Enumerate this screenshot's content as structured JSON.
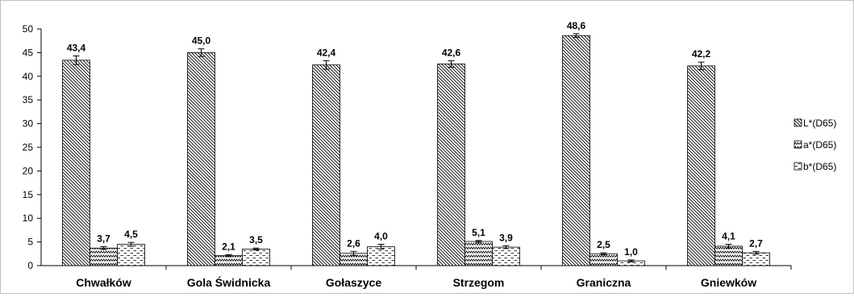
{
  "chart_data": {
    "type": "bar",
    "categories": [
      "Chwałków",
      "Gola Świdnicka",
      "Gołaszyce",
      "Strzegom",
      "Graniczna",
      "Gniewków"
    ],
    "series": [
      {
        "name": "L*(D65)",
        "values": [
          43.4,
          45.0,
          42.4,
          42.6,
          48.6,
          42.2
        ],
        "labels": [
          "43,4",
          "45,0",
          "42,4",
          "42,6",
          "48,6",
          "42,2"
        ],
        "errors": [
          0.9,
          0.8,
          0.9,
          0.7,
          0.4,
          0.8
        ],
        "pattern": "diagonal"
      },
      {
        "name": "a*(D65)",
        "values": [
          3.7,
          2.1,
          2.6,
          5.1,
          2.5,
          4.1
        ],
        "labels": [
          "3,7",
          "2,1",
          "2,6",
          "5,1",
          "2,5",
          "4,1"
        ],
        "errors": [
          0.3,
          0.2,
          0.4,
          0.2,
          0.2,
          0.4
        ],
        "pattern": "zigzag"
      },
      {
        "name": "b*(D65)",
        "values": [
          4.5,
          3.5,
          4.0,
          3.9,
          1.0,
          2.7
        ],
        "labels": [
          "4,5",
          "3,5",
          "4,0",
          "3,9",
          "1,0",
          "2,7"
        ],
        "errors": [
          0.4,
          0.2,
          0.5,
          0.3,
          0.2,
          0.3
        ],
        "pattern": "dashes"
      }
    ],
    "yaxis": {
      "min": 0,
      "max": 50,
      "step": 5
    },
    "ylim": [
      0,
      50
    ],
    "grid": false,
    "legend_position": "right",
    "title": "",
    "xlabel": "",
    "ylabel": ""
  }
}
